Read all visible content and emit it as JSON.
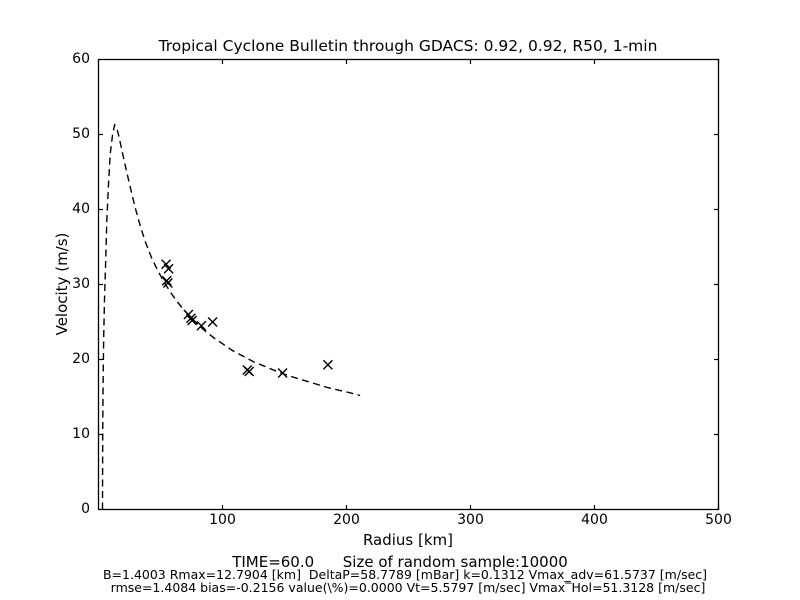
{
  "figure": {
    "background": "#ffffff",
    "text_color": "#000000"
  },
  "chart_data": {
    "type": "line+scatter",
    "title": "Tropical Cyclone Bulletin through GDACS: 0.92, 0.92, R50, 1-min",
    "xlabel": "Radius [km]",
    "ylabel": "Velocity (m/s)",
    "xlim": [
      0,
      500
    ],
    "ylim": [
      0,
      60
    ],
    "xticks": [
      100,
      200,
      300,
      400,
      500
    ],
    "yticks": [
      0,
      10,
      20,
      30,
      40,
      50,
      60
    ],
    "grid": false,
    "legend": "none",
    "series": [
      {
        "name": "holland-wind-profile-fit",
        "style": "dashed-line",
        "color": "#000000",
        "points": [
          [
            3.2,
            0
          ],
          [
            3.3,
            6
          ],
          [
            3.5,
            12
          ],
          [
            3.8,
            18
          ],
          [
            4.2,
            23
          ],
          [
            4.8,
            28
          ],
          [
            5.9,
            33.6
          ],
          [
            6.7,
            38.5
          ],
          [
            8.1,
            43.4
          ],
          [
            9.4,
            47.4
          ],
          [
            11.3,
            49.9
          ],
          [
            13,
            51.3
          ],
          [
            14.5,
            51.0
          ],
          [
            16.5,
            49.7
          ],
          [
            18.5,
            48.2
          ],
          [
            21,
            46.3
          ],
          [
            24,
            44.1
          ],
          [
            27,
            42.0
          ],
          [
            30,
            40.0
          ],
          [
            34,
            37.6
          ],
          [
            38,
            35.6
          ],
          [
            43,
            33.5
          ],
          [
            48,
            31.8
          ],
          [
            53,
            30.3
          ],
          [
            58,
            29.0
          ],
          [
            63,
            27.8
          ],
          [
            68,
            26.8
          ],
          [
            74,
            25.7
          ],
          [
            80,
            24.7
          ],
          [
            86,
            23.8
          ],
          [
            93,
            22.9
          ],
          [
            100,
            22.1
          ],
          [
            108,
            21.2
          ],
          [
            116,
            20.5
          ],
          [
            125,
            19.7
          ],
          [
            134,
            19.1
          ],
          [
            144,
            18.4
          ],
          [
            154,
            17.8
          ],
          [
            164,
            17.3
          ],
          [
            174,
            16.8
          ],
          [
            184,
            16.3
          ],
          [
            194,
            15.9
          ],
          [
            202,
            15.6
          ],
          [
            211,
            15.2
          ]
        ]
      },
      {
        "name": "sample-observations",
        "style": "x-marker",
        "color": "#000000",
        "points": [
          [
            54.5,
            32.7
          ],
          [
            56.5,
            32.1
          ],
          [
            55,
            30.5
          ],
          [
            56,
            30.2
          ],
          [
            72.5,
            26.0
          ],
          [
            74.5,
            25.5
          ],
          [
            75.5,
            25.2
          ],
          [
            83,
            24.5
          ],
          [
            92,
            25.0
          ],
          [
            120,
            18.6
          ],
          [
            121.5,
            18.4
          ],
          [
            148.5,
            18.2
          ],
          [
            185,
            19.3
          ]
        ]
      }
    ],
    "annotations": {
      "time_line": "TIME=60.0      Size of random sample:10000",
      "params_line1": "B=1.4003 Rmax=12.7904 [km]  DeltaP=58.7789 [mBar] k=0.1312 Vmax_adv=61.5737 [m/sec]",
      "params_line2": "rmse=1.4084 bias=-0.2156 value(\\%)=0.0000 Vt=5.5797 [m/sec] Vmax‾Hol=51.3128 [m/sec]"
    }
  }
}
